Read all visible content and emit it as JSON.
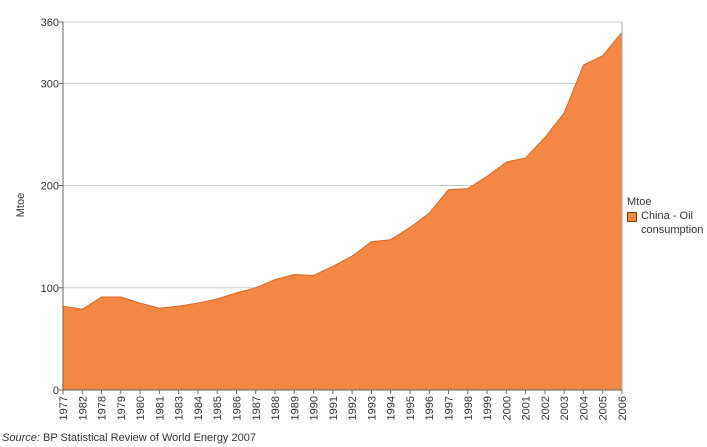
{
  "chart_data": {
    "type": "area",
    "ylabel": "Mtoe",
    "xlabel": "",
    "ylim": [
      0,
      360
    ],
    "yticks": [
      0,
      100,
      200,
      300,
      360
    ],
    "grid": true,
    "legend_position": "right",
    "legend_title": "Mtoe",
    "categories": [
      "1977",
      "1982",
      "1978",
      "1979",
      "1980",
      "1981",
      "1983",
      "1984",
      "1985",
      "1986",
      "1987",
      "1988",
      "1989",
      "1990",
      "1991",
      "1992",
      "1993",
      "1994",
      "1995",
      "1996",
      "1997",
      "1998",
      "1999",
      "2000",
      "2001",
      "2002",
      "2003",
      "2004",
      "2005",
      "2006"
    ],
    "series": [
      {
        "name": "China - Oil consumption",
        "color": "#f58744",
        "values": [
          82,
          79,
          91,
          91,
          85,
          80,
          82,
          85,
          89,
          95,
          100,
          108,
          113,
          112,
          121,
          131,
          145,
          147,
          159,
          173,
          196,
          197,
          209,
          223,
          227,
          247,
          271,
          318,
          327,
          350
        ]
      }
    ]
  },
  "source": {
    "prefix": "Source:",
    "text": "BP Statistical Review of World Energy 2007"
  }
}
